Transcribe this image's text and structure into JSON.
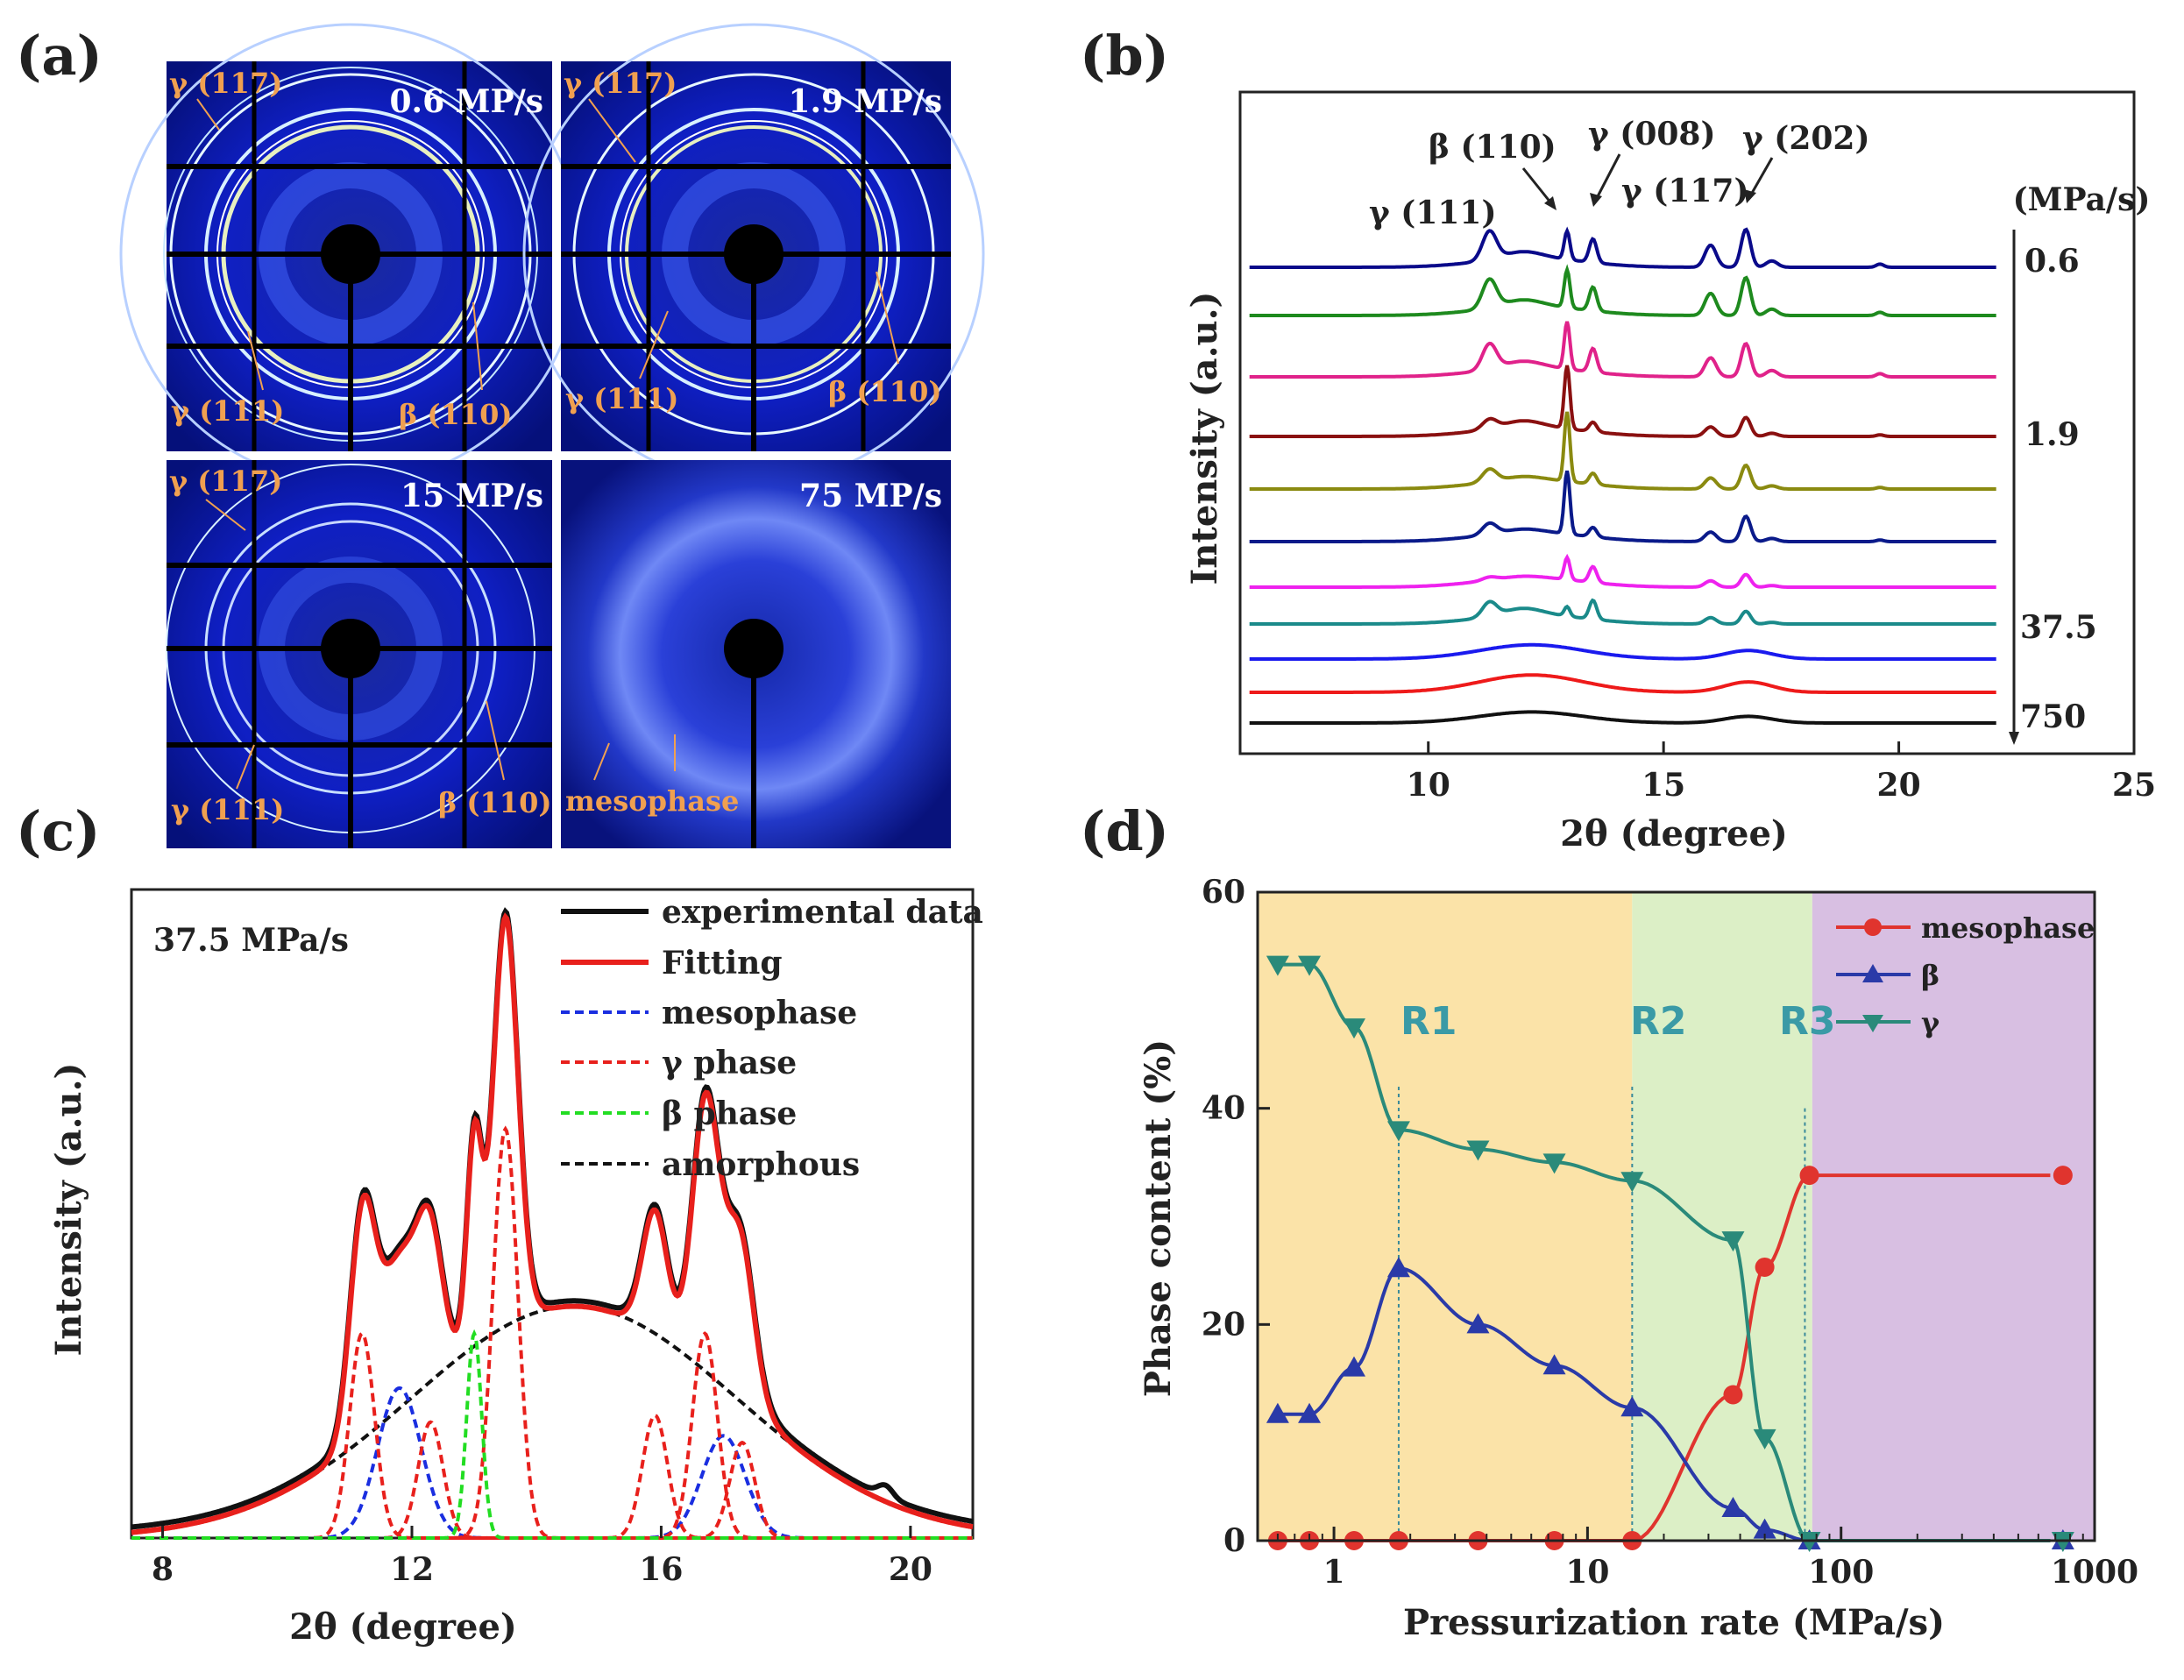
{
  "panel_labels": {
    "a": "(a)",
    "b": "(b)",
    "c": "(c)",
    "d": "(d)"
  },
  "panel_a": {
    "images": [
      {
        "rate": "0.6 MP/s",
        "labels": [
          "γ (117)",
          "γ (111)",
          "β (110)"
        ]
      },
      {
        "rate": "1.9 MP/s",
        "labels": [
          "γ (117)",
          "γ (111)",
          "β (110)"
        ]
      },
      {
        "rate": "15 MP/s",
        "labels": [
          "γ (117)",
          "γ (111)",
          "β (110)"
        ]
      },
      {
        "rate": "75 MP/s",
        "labels": [
          "mesophase"
        ]
      }
    ]
  },
  "chart_data": [
    {
      "panel": "b",
      "type": "line",
      "xlabel": "2θ (degree)",
      "ylabel": "Intensity (a.u.)",
      "xlim": [
        6,
        25
      ],
      "xticks": [
        "10",
        "15",
        "20",
        "25"
      ],
      "unit_label": "(MPa/s)",
      "rate_labels": [
        "0.6",
        "1.9",
        "37.5",
        "750"
      ],
      "peak_labels": [
        "γ (111)",
        "β (110)",
        "γ (008)",
        "γ (117)",
        "γ (202)"
      ],
      "x_range": [
        6.2,
        22.1
      ],
      "series_colors": [
        "#0a0a8a",
        "#1e8a1e",
        "#e0228a",
        "#8a1010",
        "#8a8a10",
        "#0a1a8a",
        "#ee22ee",
        "#1a8a8a",
        "#1a1aee",
        "#ee1a1a",
        "#111111"
      ],
      "series": [
        {
          "amp": [
            0.9,
            0.2,
            0.9,
            0.75,
            0.7,
            1.2,
            0.2,
            0.1,
            0.3
          ]
        },
        {
          "amp": [
            0.9,
            0.2,
            1.2,
            0.75,
            0.7,
            1.2,
            0.2,
            0.1,
            0.3
          ]
        },
        {
          "amp": [
            0.8,
            0.2,
            1.5,
            0.75,
            0.6,
            1.05,
            0.2,
            0.1,
            0.3
          ]
        },
        {
          "amp": [
            0.3,
            0.2,
            2.0,
            0.3,
            0.3,
            0.6,
            0.1,
            0.05,
            0.3
          ]
        },
        {
          "amp": [
            0.4,
            0.1,
            2.2,
            0.35,
            0.35,
            0.75,
            0.1,
            0.05,
            0.3
          ]
        },
        {
          "amp": [
            0.35,
            0.1,
            2.0,
            0.3,
            0.3,
            0.8,
            0.1,
            0.05,
            0.3
          ]
        },
        {
          "amp": [
            0.1,
            0.05,
            0.7,
            0.5,
            0.2,
            0.4,
            0.05,
            0.0,
            0.3
          ]
        },
        {
          "amp": [
            0.45,
            0.2,
            0.3,
            0.6,
            0.2,
            0.4,
            0.05,
            0.0,
            0.3
          ]
        },
        {
          "amp": [
            0.0,
            0.0,
            0.0,
            0.0,
            0.0,
            0.0,
            0.0,
            0.0,
            0.45
          ]
        },
        {
          "amp": [
            0.0,
            0.0,
            0.0,
            0.0,
            0.0,
            0.0,
            0.0,
            0.0,
            0.55
          ]
        },
        {
          "amp": [
            0.0,
            0.0,
            0.0,
            0.0,
            0.0,
            0.0,
            0.0,
            0.0,
            0.35
          ]
        }
      ]
    },
    {
      "panel": "c",
      "type": "line",
      "title": "37.5 MPa/s",
      "xlabel": "2θ (degree)",
      "ylabel": "Intensity (a.u.)",
      "xlim": [
        7.5,
        21
      ],
      "xticks": [
        "8",
        "12",
        "16",
        "20"
      ],
      "legend": [
        "experimental data",
        "Fitting",
        "mesophase",
        "γ  phase",
        "β  phase",
        "amorphous"
      ],
      "mesophase_peaks": [
        [
          11.8,
          1.1
        ],
        [
          17.0,
          0.75
        ]
      ],
      "gamma_peaks": [
        [
          11.2,
          1.5
        ],
        [
          12.3,
          0.85
        ],
        [
          13.5,
          3.0
        ],
        [
          15.9,
          0.9
        ],
        [
          16.7,
          1.5
        ],
        [
          17.3,
          0.7
        ]
      ],
      "beta_peaks": [
        [
          13.0,
          1.5
        ]
      ],
      "amorphous": {
        "center": 14.6,
        "height": 1.7
      },
      "ylim": [
        0,
        4.5
      ]
    },
    {
      "panel": "d",
      "type": "scatter",
      "xlabel": "Pressurization rate (MPa/s)",
      "ylabel": "Phase content (%)",
      "xscale": "log",
      "xlim": [
        0.5,
        1000
      ],
      "ylim": [
        0,
        60
      ],
      "xticks": [
        "1",
        "10",
        "100",
        "1000"
      ],
      "yticks": [
        "0",
        "20",
        "40",
        "60"
      ],
      "x": [
        0.6,
        0.8,
        1.2,
        1.8,
        3.7,
        7.4,
        15,
        37.5,
        50,
        75,
        750
      ],
      "series": [
        {
          "name": "mesophase",
          "values": [
            0,
            0,
            0,
            0,
            0,
            0,
            0,
            13.5,
            25.3,
            33.8,
            33.8
          ]
        },
        {
          "name": "β",
          "values": [
            11.7,
            11.7,
            16,
            25.2,
            20,
            16.2,
            12.3,
            3,
            1,
            0,
            0
          ]
        },
        {
          "name": "γ",
          "values": [
            53.3,
            53.3,
            47.5,
            38,
            36.2,
            35,
            33.3,
            27.8,
            9.5,
            0,
            0
          ]
        }
      ],
      "region_labels": [
        "R1",
        "R2",
        "R3"
      ],
      "region_bounds": [
        1.8,
        15,
        72
      ],
      "colors": {
        "mesophase": "#e0342e",
        "beta": "#2a3aa8",
        "gamma": "#2a8a7a",
        "r1": "#fbe3a8",
        "r2": "#dcefc6",
        "r3": "#d8bfe2"
      }
    }
  ]
}
